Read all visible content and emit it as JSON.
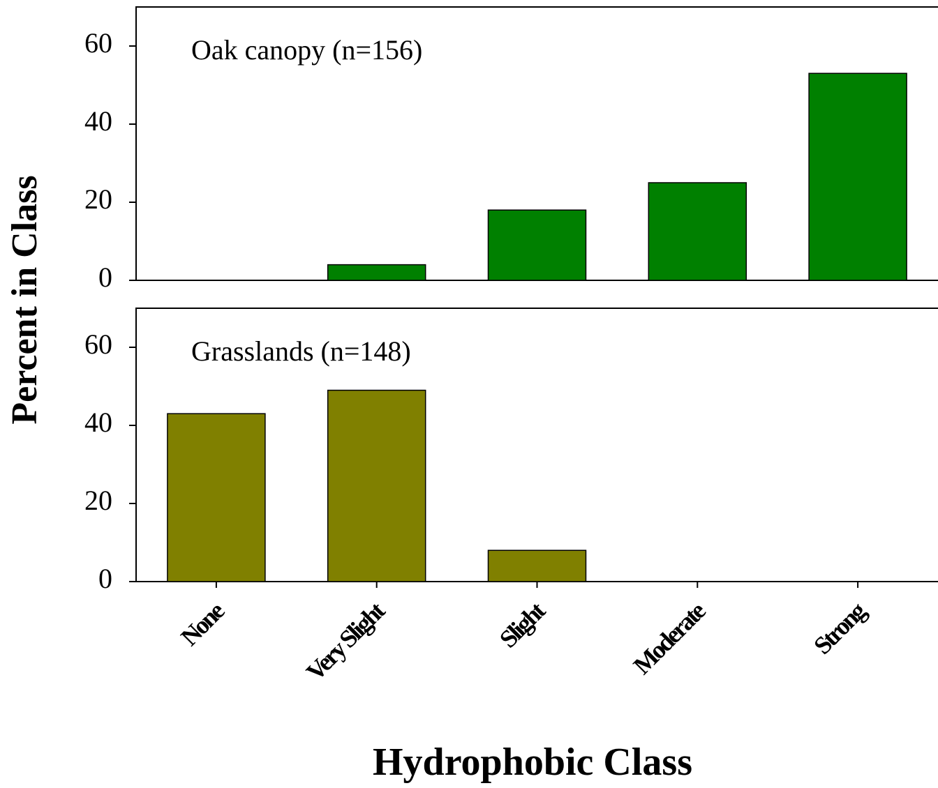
{
  "chart_data": [
    {
      "type": "bar",
      "title": "Oak canopy (n=156)",
      "ylabel": "Percent in Class",
      "values": [
        0,
        4,
        18,
        25,
        53
      ],
      "color": "#008000",
      "ylim": [
        0,
        70
      ],
      "yticks": [
        0,
        20,
        40,
        60
      ]
    },
    {
      "type": "bar",
      "title": "Grasslands (n=148)",
      "xlabel": "Hydrophobic Class",
      "categories": [
        "None",
        "Very Slight",
        "Slight",
        "Moderate",
        "Strong"
      ],
      "values": [
        43,
        49,
        8,
        0,
        0
      ],
      "color": "#808000",
      "ylim": [
        0,
        70
      ],
      "yticks": [
        0,
        20,
        40,
        60
      ]
    }
  ]
}
